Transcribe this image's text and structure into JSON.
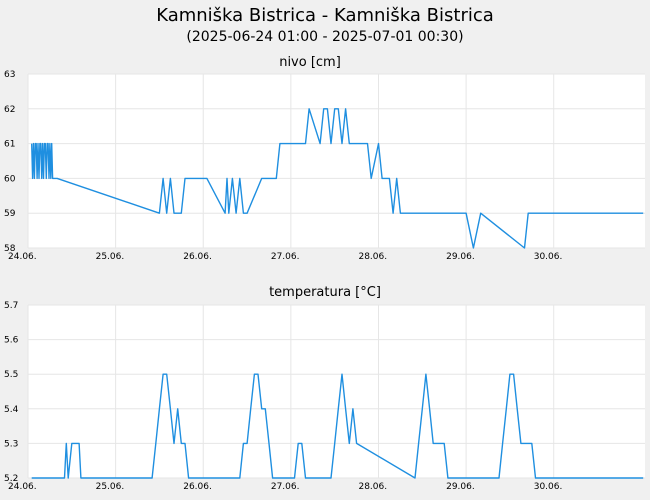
{
  "page": {
    "title": "Kamniška Bistrica - Kamniška Bistrica",
    "subtitle": "(2025-06-24 01:00 - 2025-07-01 00:30)"
  },
  "colors": {
    "series": "#1f8fe0",
    "grid": "#e6e6e6",
    "plot_bg": "#ffffff",
    "page_bg": "#f0f0f0"
  },
  "chart_data": [
    {
      "type": "line",
      "title": "nivo [cm]",
      "xlabel": "",
      "ylabel": "",
      "x_tick_labels": [
        "24.06.",
        "25.06.",
        "26.06.",
        "27.06.",
        "28.06.",
        "29.06.",
        "30.06."
      ],
      "y_tick_labels": [
        "58",
        "59",
        "60",
        "61",
        "62",
        "63"
      ],
      "xlim": [
        "2025-06-24 00:00",
        "2025-07-01 01:00"
      ],
      "ylim": [
        58,
        63
      ],
      "grid": true,
      "series": [
        {
          "x": [
            "2025-06-24 01:00",
            "2025-06-24 01:15",
            "2025-06-24 01:30",
            "2025-06-24 01:45",
            "2025-06-24 02:00",
            "2025-06-24 02:15",
            "2025-06-24 02:30",
            "2025-06-24 02:45",
            "2025-06-24 03:00",
            "2025-06-24 03:15",
            "2025-06-24 03:30",
            "2025-06-24 03:45",
            "2025-06-24 04:00",
            "2025-06-24 04:15",
            "2025-06-24 04:30",
            "2025-06-24 04:45",
            "2025-06-24 05:00",
            "2025-06-24 05:15",
            "2025-06-24 05:30",
            "2025-06-24 05:45",
            "2025-06-24 06:00",
            "2025-06-24 06:15",
            "2025-06-24 06:30",
            "2025-06-24 06:45",
            "2025-06-24 07:00",
            "2025-06-24 08:00",
            "2025-06-25 12:00",
            "2025-06-25 13:00",
            "2025-06-25 14:00",
            "2025-06-25 15:00",
            "2025-06-25 16:00",
            "2025-06-25 17:00",
            "2025-06-25 18:00",
            "2025-06-25 19:00",
            "2025-06-25 20:00",
            "2025-06-25 21:00",
            "2025-06-25 22:00",
            "2025-06-26 00:00",
            "2025-06-26 01:00",
            "2025-06-26 06:00",
            "2025-06-26 06:30",
            "2025-06-26 07:00",
            "2025-06-26 08:00",
            "2025-06-26 09:00",
            "2025-06-26 10:00",
            "2025-06-26 11:00",
            "2025-06-26 12:00",
            "2025-06-26 16:00",
            "2025-06-26 17:00",
            "2025-06-26 18:00",
            "2025-06-26 19:00",
            "2025-06-26 20:00",
            "2025-06-26 21:00",
            "2025-06-26 22:00",
            "2025-06-26 23:00",
            "2025-06-27 00:00",
            "2025-06-27 04:00",
            "2025-06-27 05:00",
            "2025-06-27 08:00",
            "2025-06-27 09:00",
            "2025-06-27 10:00",
            "2025-06-27 11:00",
            "2025-06-27 12:00",
            "2025-06-27 13:00",
            "2025-06-27 14:00",
            "2025-06-27 15:00",
            "2025-06-27 16:00",
            "2025-06-27 17:00",
            "2025-06-27 18:00",
            "2025-06-27 19:00",
            "2025-06-27 21:00",
            "2025-06-27 22:00",
            "2025-06-28 00:00",
            "2025-06-28 01:00",
            "2025-06-28 02:00",
            "2025-06-28 03:00",
            "2025-06-28 04:00",
            "2025-06-28 05:00",
            "2025-06-28 06:00",
            "2025-06-28 10:00",
            "2025-06-28 12:00",
            "2025-06-28 14:00",
            "2025-06-28 16:00",
            "2025-06-28 18:00",
            "2025-06-29 00:00",
            "2025-06-29 02:00",
            "2025-06-29 04:00",
            "2025-06-29 16:00",
            "2025-06-29 17:00",
            "2025-06-29 18:00",
            "2025-06-29 20:00",
            "2025-07-01 00:30"
          ],
          "y": [
            61,
            60,
            61,
            60,
            61,
            61,
            60,
            61,
            60,
            61,
            61,
            60,
            61,
            60,
            61,
            61,
            60,
            61,
            61,
            60,
            61,
            60,
            61,
            60,
            60,
            60,
            59,
            60,
            59,
            60,
            59,
            59,
            59,
            60,
            60,
            60,
            60,
            60,
            60,
            59,
            60,
            59,
            60,
            59,
            60,
            59,
            59,
            60,
            60,
            60,
            60,
            60,
            61,
            61,
            61,
            61,
            61,
            62,
            61,
            62,
            62,
            61,
            62,
            62,
            61,
            62,
            61,
            61,
            61,
            61,
            61,
            60,
            61,
            60,
            60,
            60,
            59,
            60,
            59,
            59,
            59,
            59,
            59,
            59,
            59,
            58,
            59,
            58,
            59,
            59,
            59,
            59
          ]
        }
      ]
    },
    {
      "type": "line",
      "title": "temperatura [°C]",
      "xlabel": "",
      "ylabel": "",
      "x_tick_labels": [
        "24.06.",
        "25.06.",
        "26.06.",
        "27.06.",
        "28.06.",
        "29.06.",
        "30.06."
      ],
      "y_tick_labels": [
        "5.2",
        "5.3",
        "5.4",
        "5.5",
        "5.6",
        "5.7"
      ],
      "xlim": [
        "2025-06-24 00:00",
        "2025-07-01 01:00"
      ],
      "ylim": [
        5.2,
        5.7
      ],
      "grid": true,
      "series": [
        {
          "x": [
            "2025-06-24 01:00",
            "2025-06-24 10:00",
            "2025-06-24 10:30",
            "2025-06-24 11:00",
            "2025-06-24 11:30",
            "2025-06-24 12:00",
            "2025-06-24 12:30",
            "2025-06-24 13:00",
            "2025-06-24 14:00",
            "2025-06-24 14:30",
            "2025-06-24 19:00",
            "2025-06-24 19:30",
            "2025-06-24 20:00",
            "2025-06-25 10:00",
            "2025-06-25 11:00",
            "2025-06-25 12:00",
            "2025-06-25 13:00",
            "2025-06-25 14:00",
            "2025-06-25 15:00",
            "2025-06-25 16:00",
            "2025-06-25 17:00",
            "2025-06-25 18:00",
            "2025-06-25 19:00",
            "2025-06-25 20:00",
            "2025-06-25 21:00",
            "2025-06-26 10:00",
            "2025-06-26 11:00",
            "2025-06-26 12:00",
            "2025-06-26 13:00",
            "2025-06-26 14:00",
            "2025-06-26 15:00",
            "2025-06-26 16:00",
            "2025-06-26 17:00",
            "2025-06-26 18:00",
            "2025-06-26 19:00",
            "2025-06-26 20:00",
            "2025-06-26 21:00",
            "2025-06-26 22:00",
            "2025-06-27 01:00",
            "2025-06-27 02:00",
            "2025-06-27 03:00",
            "2025-06-27 04:00",
            "2025-06-27 05:00",
            "2025-06-27 10:00",
            "2025-06-27 11:00",
            "2025-06-27 12:00",
            "2025-06-27 13:00",
            "2025-06-27 14:00",
            "2025-06-27 15:00",
            "2025-06-27 16:00",
            "2025-06-27 17:00",
            "2025-06-27 18:00",
            "2025-06-28 10:00",
            "2025-06-28 11:00",
            "2025-06-28 12:00",
            "2025-06-28 13:00",
            "2025-06-28 14:00",
            "2025-06-28 15:00",
            "2025-06-28 16:00",
            "2025-06-28 17:00",
            "2025-06-28 18:00",
            "2025-06-28 19:00",
            "2025-06-28 20:00",
            "2025-06-28 21:00",
            "2025-06-29 09:00",
            "2025-06-29 10:00",
            "2025-06-29 11:00",
            "2025-06-29 12:00",
            "2025-06-29 13:00",
            "2025-06-29 14:00",
            "2025-06-29 15:00",
            "2025-06-29 16:00",
            "2025-06-29 17:00",
            "2025-06-29 18:00",
            "2025-06-29 19:00",
            "2025-06-29 20:00",
            "2025-06-30 00:00",
            "2025-06-30 00:30",
            "2025-07-01 00:30"
          ],
          "y": [
            5.2,
            5.2,
            5.3,
            5.2,
            5.25,
            5.3,
            5.3,
            5.3,
            5.3,
            5.2,
            5.2,
            5.2,
            5.2,
            5.2,
            5.3,
            5.4,
            5.5,
            5.5,
            5.4,
            5.3,
            5.4,
            5.3,
            5.3,
            5.2,
            5.2,
            5.2,
            5.3,
            5.3,
            5.4,
            5.5,
            5.5,
            5.4,
            5.4,
            5.3,
            5.2,
            5.2,
            5.2,
            5.2,
            5.2,
            5.3,
            5.3,
            5.2,
            5.2,
            5.2,
            5.2,
            5.3,
            5.4,
            5.5,
            5.4,
            5.3,
            5.4,
            5.3,
            5.2,
            5.3,
            5.4,
            5.5,
            5.4,
            5.3,
            5.3,
            5.3,
            5.3,
            5.2,
            5.2,
            5.2,
            5.2,
            5.3,
            5.4,
            5.5,
            5.5,
            5.4,
            5.3,
            5.3,
            5.3,
            5.3,
            5.2,
            5.2,
            5.2,
            5.2,
            5.2
          ]
        }
      ]
    }
  ]
}
